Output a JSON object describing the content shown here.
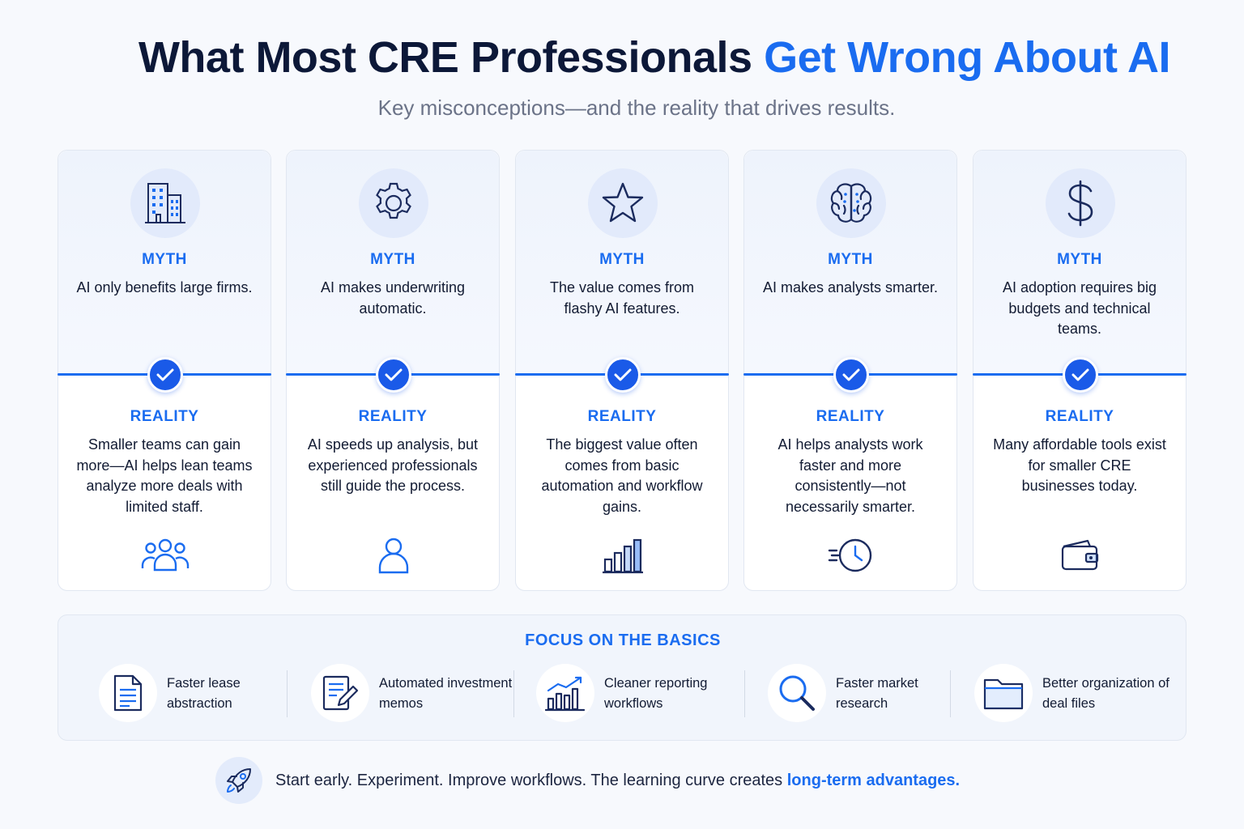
{
  "header": {
    "title_main": "What Most CRE Professionals ",
    "title_accent": "Get Wrong About AI",
    "subtitle": "Key misconceptions—and the reality that drives results."
  },
  "colors": {
    "accent": "#1a6cf0",
    "dark": "#0c1838",
    "check": "#1a5ae8"
  },
  "cards": [
    {
      "icon": "buildings-icon",
      "myth_label": "MYTH",
      "myth": "AI only benefits large firms.",
      "reality_label": "REALITY",
      "reality": "Smaller teams can gain more—AI helps lean teams analyze more deals with limited staff.",
      "bottom_icon": "team-icon"
    },
    {
      "icon": "gear-icon",
      "myth_label": "MYTH",
      "myth": "AI makes underwriting automatic.",
      "reality_label": "REALITY",
      "reality": "AI speeds up analysis, but experienced professionals still guide the process.",
      "bottom_icon": "person-icon"
    },
    {
      "icon": "star-icon",
      "myth_label": "MYTH",
      "myth": "The value comes from flashy AI features.",
      "reality_label": "REALITY",
      "reality": "The biggest value often comes from basic automation and workflow gains.",
      "bottom_icon": "bar-chart-icon"
    },
    {
      "icon": "brain-icon",
      "myth_label": "MYTH",
      "myth": "AI makes analysts smarter.",
      "reality_label": "REALITY",
      "reality": "AI helps analysts work faster and more consistently—not necessarily smarter.",
      "bottom_icon": "fast-clock-icon"
    },
    {
      "icon": "dollar-icon",
      "myth_label": "MYTH",
      "myth": "AI adoption requires big budgets and technical teams.",
      "reality_label": "REALITY",
      "reality": "Many affordable tools exist for smaller CRE businesses today.",
      "bottom_icon": "wallet-icon"
    }
  ],
  "basics": {
    "title": "FOCUS ON THE BASICS",
    "items": [
      {
        "icon": "document-icon",
        "label": "Faster lease abstraction"
      },
      {
        "icon": "memo-edit-icon",
        "label": "Automated investment memos"
      },
      {
        "icon": "growth-chart-icon",
        "label": "Cleaner reporting workflows"
      },
      {
        "icon": "magnifier-icon",
        "label": "Faster market research"
      },
      {
        "icon": "folder-icon",
        "label": "Better organization of deal files"
      }
    ]
  },
  "footer": {
    "icon": "rocket-icon",
    "text": "Start early. Experiment. Improve workflows. The learning curve creates ",
    "highlight": "long-term advantages."
  }
}
